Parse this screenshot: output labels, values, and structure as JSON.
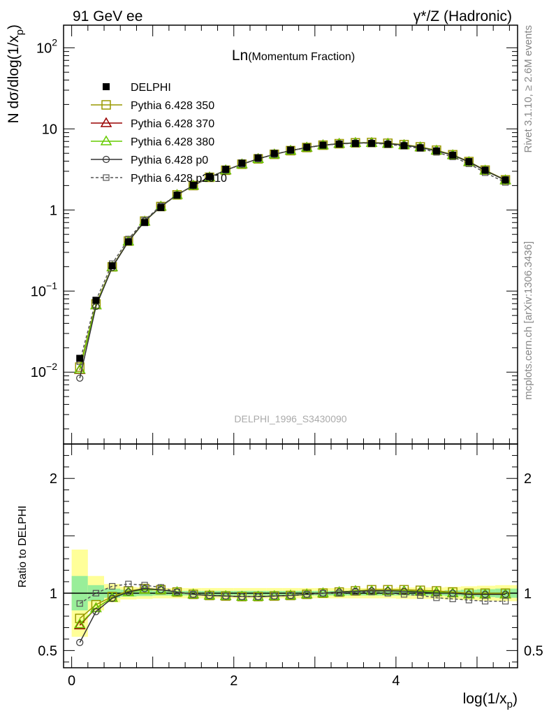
{
  "header": {
    "left": "91 GeV ee",
    "right": "γ*/Z (Hadronic)"
  },
  "side": {
    "rivet": "Rivet 3.1.10, ≥ 2.6M events",
    "mcplots": "mcplots.cern.ch [arXiv:1306.3436]"
  },
  "watermark": "DELPHI_1996_S3430090",
  "plot_title": {
    "main": "Ln",
    "sub": "(Momentum Fraction)"
  },
  "axes": {
    "ylabel_main": "N dσ/dlog(1/x",
    "ylabel_sub": "p",
    "ylabel_close": ")",
    "ylabel_ratio": "Ratio to DELPHI",
    "xlabel_main": "log(1/x",
    "xlabel_sub": "p",
    "xlabel_close": ")"
  },
  "ticks": {
    "main": [
      {
        "v": 100,
        "base": "10",
        "exp": "2"
      },
      {
        "v": 10,
        "base": "10",
        "exp": ""
      },
      {
        "v": 1,
        "base": "1",
        "exp": ""
      },
      {
        "v": 0.1,
        "base": "10",
        "exp": "−1"
      },
      {
        "v": 0.01,
        "base": "10",
        "exp": "−2"
      }
    ],
    "ratio": [
      {
        "v": 2,
        "label": "2"
      },
      {
        "v": 1,
        "label": "1"
      },
      {
        "v": 0.5,
        "label": "0.5"
      }
    ],
    "x": [
      {
        "v": 0,
        "label": "0"
      },
      {
        "v": 2,
        "label": "2"
      },
      {
        "v": 4,
        "label": "4"
      }
    ]
  },
  "legend": [
    {
      "key": "delphi",
      "label": "DELPHI"
    },
    {
      "key": "p350",
      "label": "Pythia 6.428 350"
    },
    {
      "key": "p370",
      "label": "Pythia 6.428 370"
    },
    {
      "key": "p380",
      "label": "Pythia 6.428 380"
    },
    {
      "key": "p0",
      "label": "Pythia 6.428 p0"
    },
    {
      "key": "p2010",
      "label": "Pythia 6.428 p2010"
    }
  ],
  "chart_data": {
    "type": "line",
    "title": "Ln(Momentum Fraction)",
    "xlabel": "log(1/x_p)",
    "ylabel": "N dσ/dlog(1/x_p)",
    "ylabel_ratio": "Ratio to DELPHI",
    "yscale": "log",
    "xlim": [
      -0.1,
      5.5
    ],
    "ylim": [
      0.0013,
      190
    ],
    "ratio_ylim": [
      0.35,
      2.3
    ],
    "legend_position": "top-left",
    "x": [
      0.1,
      0.3,
      0.5,
      0.7,
      0.9,
      1.1,
      1.3,
      1.5,
      1.7,
      1.9,
      2.1,
      2.3,
      2.5,
      2.7,
      2.9,
      3.1,
      3.3,
      3.5,
      3.7,
      3.9,
      4.1,
      4.3,
      4.5,
      4.7,
      4.9,
      5.1,
      5.35
    ],
    "data": {
      "name": "DELPHI",
      "values": [
        0.0148,
        0.077,
        0.205,
        0.405,
        0.7,
        1.07,
        1.52,
        2.02,
        2.58,
        3.17,
        3.78,
        4.4,
        4.98,
        5.5,
        5.95,
        6.3,
        6.5,
        6.6,
        6.6,
        6.45,
        6.2,
        5.85,
        5.35,
        4.75,
        3.95,
        3.1,
        2.35
      ],
      "stat_band": [
        0.15,
        0.07,
        0.04,
        0.03,
        0.025,
        0.02,
        0.02,
        0.02,
        0.02,
        0.02,
        0.02,
        0.02,
        0.02,
        0.02,
        0.02,
        0.02,
        0.02,
        0.02,
        0.02,
        0.02,
        0.02,
        0.02,
        0.02,
        0.025,
        0.03,
        0.035,
        0.04
      ],
      "total_band": [
        0.38,
        0.15,
        0.08,
        0.055,
        0.05,
        0.045,
        0.045,
        0.045,
        0.045,
        0.045,
        0.045,
        0.045,
        0.045,
        0.045,
        0.045,
        0.045,
        0.045,
        0.045,
        0.045,
        0.045,
        0.05,
        0.05,
        0.05,
        0.055,
        0.06,
        0.065,
        0.07
      ]
    },
    "series": [
      {
        "name": "Pythia 6.428 350",
        "key": "p350",
        "color": "#999900",
        "marker": "square-open",
        "dash": "",
        "ratio": [
          0.78,
          0.9,
          0.97,
          1.02,
          1.04,
          1.03,
          1.01,
          0.99,
          0.98,
          0.975,
          0.97,
          0.97,
          0.975,
          0.98,
          0.99,
          1.0,
          1.01,
          1.02,
          1.03,
          1.03,
          1.03,
          1.025,
          1.02,
          1.01,
          1.0,
          1.0,
          1.0
        ]
      },
      {
        "name": "Pythia 6.428 370",
        "key": "p370",
        "color": "#990000",
        "marker": "triangle-open",
        "dash": "",
        "ratio": [
          0.72,
          0.87,
          0.96,
          1.01,
          1.03,
          1.03,
          1.01,
          0.99,
          0.98,
          0.975,
          0.97,
          0.97,
          0.975,
          0.98,
          0.99,
          1.0,
          1.01,
          1.02,
          1.02,
          1.02,
          1.02,
          1.015,
          1.01,
          1.0,
          0.99,
          0.99,
          0.99
        ]
      },
      {
        "name": "Pythia 6.428 380",
        "key": "p380",
        "color": "#66cc00",
        "marker": "triangle-open",
        "dash": "",
        "ratio": [
          0.73,
          0.87,
          0.96,
          1.01,
          1.03,
          1.03,
          1.01,
          0.99,
          0.98,
          0.975,
          0.97,
          0.97,
          0.975,
          0.98,
          0.99,
          1.0,
          1.01,
          1.02,
          1.02,
          1.02,
          1.02,
          1.015,
          1.01,
          1.0,
          0.99,
          0.99,
          0.99
        ]
      },
      {
        "name": "Pythia 6.428 p0",
        "key": "p0",
        "color": "#333333",
        "marker": "circle-open",
        "dash": "",
        "ratio": [
          0.57,
          0.84,
          0.955,
          1.01,
          1.04,
          1.03,
          1.01,
          0.99,
          0.98,
          0.975,
          0.97,
          0.97,
          0.975,
          0.98,
          0.99,
          1.0,
          1.01,
          1.015,
          1.02,
          1.02,
          1.015,
          1.01,
          1.0,
          1.0,
          0.99,
          0.99,
          0.99
        ]
      },
      {
        "name": "Pythia 6.428 p2010",
        "key": "p2010",
        "color": "#555555",
        "marker": "square-open-small",
        "dash": "4,3",
        "ratio": [
          0.91,
          1.0,
          1.06,
          1.08,
          1.07,
          1.05,
          1.01,
          0.99,
          0.98,
          0.975,
          0.97,
          0.97,
          0.975,
          0.98,
          0.99,
          1.0,
          1.0,
          1.01,
          1.01,
          1.0,
          0.99,
          0.98,
          0.96,
          0.95,
          0.94,
          0.93,
          0.93
        ]
      }
    ]
  }
}
